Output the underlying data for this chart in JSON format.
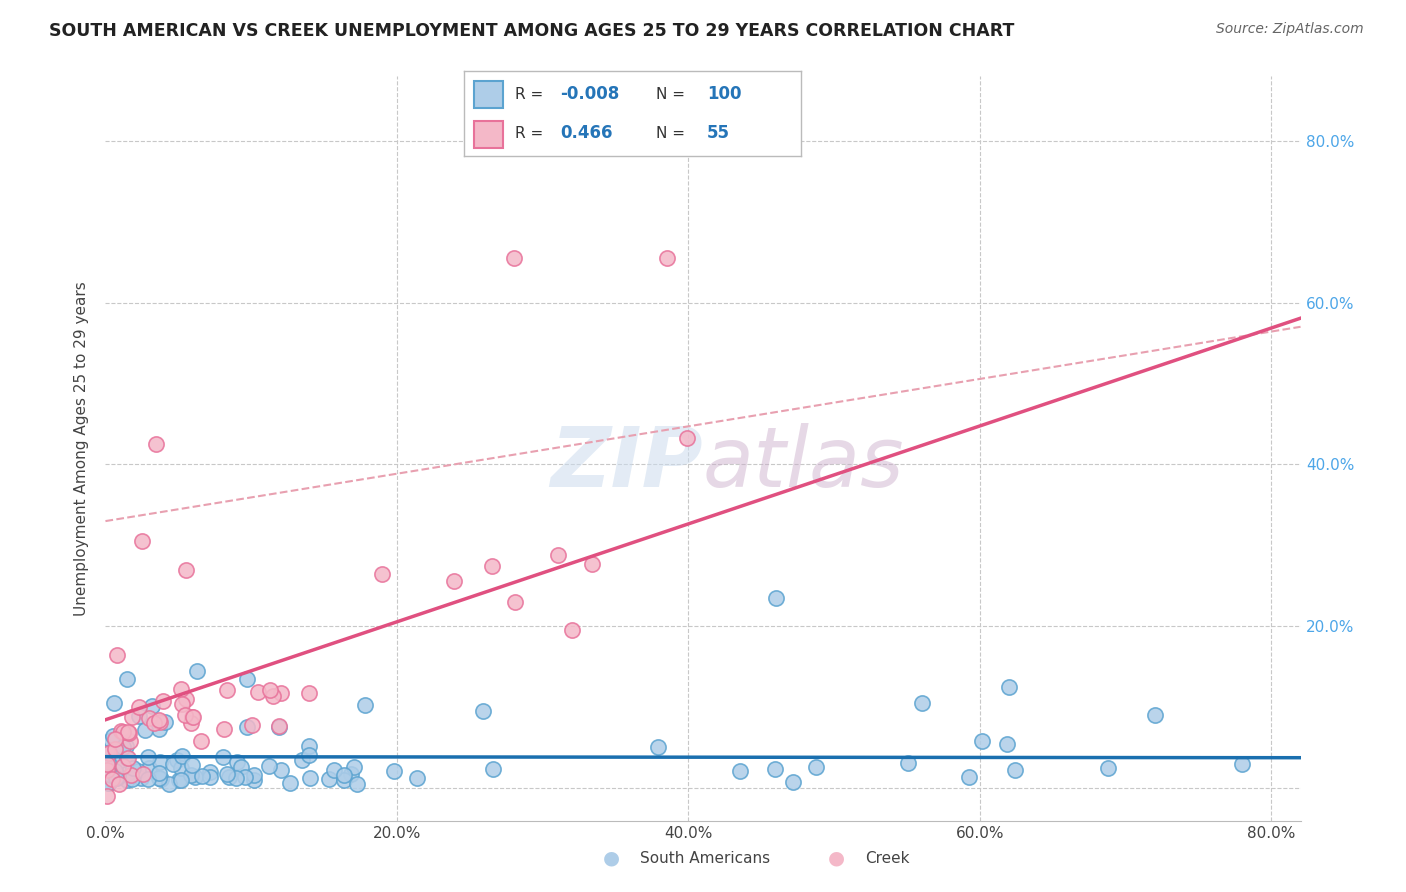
{
  "title": "SOUTH AMERICAN VS CREEK UNEMPLOYMENT AMONG AGES 25 TO 29 YEARS CORRELATION CHART",
  "source": "Source: ZipAtlas.com",
  "ylabel": "Unemployment Among Ages 25 to 29 years",
  "xlim": [
    0.0,
    0.82
  ],
  "ylim": [
    -0.04,
    0.88
  ],
  "xticks": [
    0.0,
    0.2,
    0.4,
    0.6,
    0.8
  ],
  "yticks": [
    0.0,
    0.2,
    0.4,
    0.6,
    0.8
  ],
  "ytick_labels_right": [
    "",
    "20.0%",
    "40.0%",
    "60.0%",
    "80.0%"
  ],
  "xtick_labels": [
    "0.0%",
    "20.0%",
    "40.0%",
    "60.0%",
    "80.0%"
  ],
  "south_americans": {
    "R": -0.008,
    "N": 100,
    "color": "#aecde8",
    "edge_color": "#5ba3d0",
    "label": "South Americans"
  },
  "creek": {
    "R": 0.466,
    "N": 55,
    "color": "#f4b8c8",
    "edge_color": "#e8729a",
    "label": "Creek"
  },
  "sa_trend_color": "#1a6faf",
  "creek_trend_color": "#e05080",
  "creek_dash_color": "#e8a0b0",
  "background_color": "#ffffff",
  "grid_color": "#c8c8c8",
  "seed": 42
}
